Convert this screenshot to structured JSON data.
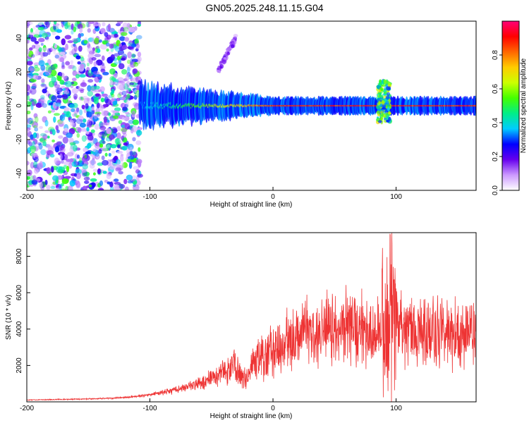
{
  "figure": {
    "title": "GN05.2025.248.11.15.G04",
    "colors": {
      "snr_line": "#ee3333",
      "spectrum_low": "#cc99ff",
      "spectrum_mid": "#00ddcc",
      "spectrum_high": "#ff2222"
    }
  },
  "chart_data": [
    {
      "type": "heatmap",
      "name": "spectrogram",
      "title": "GN05.2025.248.11.15.G04",
      "xlabel": "Height of straight line (km)",
      "ylabel": "Frequency (Hz)",
      "xlim": [
        -200,
        165
      ],
      "ylim": [
        -50,
        50
      ],
      "x_ticks": [
        -200,
        -100,
        0,
        100
      ],
      "x_tick_labels": [
        "-200",
        "-100",
        "0",
        "100"
      ],
      "y_ticks": [
        -40,
        -20,
        0,
        20,
        40
      ],
      "y_tick_labels": [
        "-40",
        "-20",
        "0",
        "20",
        "40"
      ],
      "colorbar": {
        "label": "Normalized spectral amplitude",
        "range": [
          0,
          1
        ],
        "ticks": [
          0,
          0.2,
          0.4,
          0.6,
          0.8
        ],
        "tick_labels": [
          "0.0",
          "0.2",
          "0.4",
          "0.6",
          "0.8"
        ],
        "stops": [
          "#ffffff",
          "#cc99ff",
          "#6600ee",
          "#0000ff",
          "#00ccff",
          "#00ee88",
          "#44ff00",
          "#ccff00",
          "#ffcc00",
          "#ff6600",
          "#ff0000",
          "#ff0077"
        ]
      },
      "bands": [
        {
          "name": "noise",
          "x_range": [
            -200,
            -108
          ],
          "y_range": [
            -50,
            50
          ],
          "amplitude": 0.15
        },
        {
          "name": "carrier",
          "x_range": [
            -108,
            165
          ],
          "center_freq": 0,
          "amplitude": 0.9
        },
        {
          "name": "spur",
          "x_range": [
            -45,
            -30
          ],
          "y_range": [
            20,
            40
          ],
          "amplitude": 0.2
        },
        {
          "name": "spike",
          "x_range": [
            85,
            95
          ],
          "y_range": [
            -10,
            15
          ],
          "amplitude": 0.7
        }
      ]
    },
    {
      "type": "line",
      "name": "snr",
      "xlabel": "Height of straight line (km)",
      "ylabel": "SNR (10 * v/v)",
      "xlim": [
        -200,
        165
      ],
      "ylim": [
        0,
        9300
      ],
      "x_ticks": [
        -200,
        -100,
        0,
        100
      ],
      "x_tick_labels": [
        "-200",
        "-100",
        "0",
        "100"
      ],
      "y_ticks": [
        2000,
        4000,
        6000,
        8000
      ],
      "y_tick_labels": [
        "2000",
        "4000",
        "6000",
        "8000"
      ],
      "series": [
        {
          "name": "SNR",
          "x": [
            -200,
            -160,
            -130,
            -110,
            -90,
            -70,
            -60,
            -50,
            -40,
            -30,
            -25,
            -20,
            -15,
            -10,
            0,
            10,
            20,
            30,
            50,
            70,
            85,
            90,
            95,
            100,
            105,
            120,
            140,
            165
          ],
          "y": [
            100,
            150,
            200,
            300,
            500,
            800,
            1000,
            1300,
            1600,
            2000,
            1200,
            1500,
            2100,
            2400,
            2800,
            3200,
            3600,
            3800,
            4000,
            4100,
            4000,
            3800,
            3500,
            3900,
            4000,
            3900,
            3800,
            3700
          ]
        }
      ]
    }
  ]
}
